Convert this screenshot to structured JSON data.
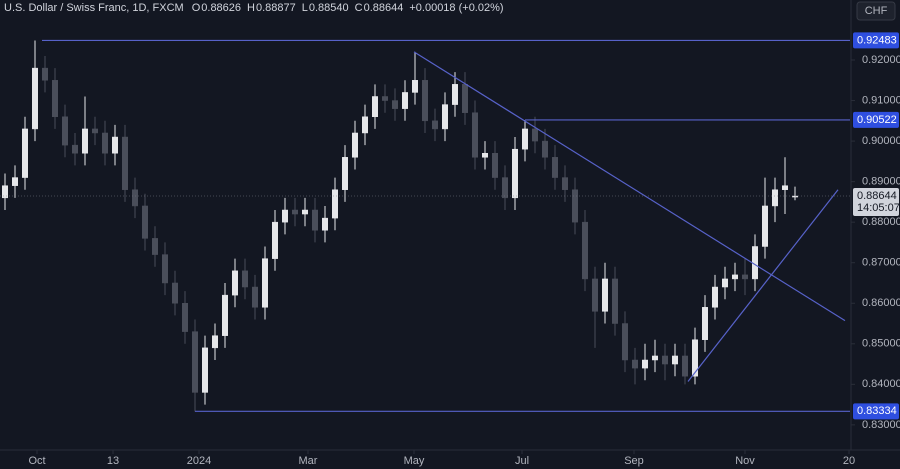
{
  "chart_data": {
    "type": "candlestick",
    "header": {
      "symbol": "U.S. Dollar / Swiss Franc, 1D, FXCM",
      "fields": [
        {
          "key": "O",
          "text": "0.88626"
        },
        {
          "key": "H",
          "text": "0.88877"
        },
        {
          "key": "L",
          "text": "0.88540"
        },
        {
          "key": "C",
          "text": "0.88644"
        }
      ],
      "change": "+0.00018 (+0.02%)"
    },
    "currency": "CHF",
    "up_color": "#e6e7ea",
    "down_color": "#4a4e5a",
    "line_color": "#5762c9",
    "level_color": "#2f4fe0",
    "xlim": [
      -0.5,
      84.5
    ],
    "xticks": [
      {
        "value": 3.2,
        "label": "Oct"
      },
      {
        "value": 10.8,
        "label": "13"
      },
      {
        "value": 19.4,
        "label": "2024"
      },
      {
        "value": 30.3,
        "label": "Mar"
      },
      {
        "value": 40.9,
        "label": "May"
      },
      {
        "value": 51.7,
        "label": "Jul"
      },
      {
        "value": 62.9,
        "label": "Sep"
      },
      {
        "value": 74,
        "label": "Nov"
      },
      {
        "value": 84.4,
        "label": "20"
      }
    ],
    "ylim": [
      0.8238,
      0.9348
    ],
    "yticks": [
      {
        "value": 0.83,
        "label": "0.83000"
      },
      {
        "value": 0.84,
        "label": "0.84000"
      },
      {
        "value": 0.85,
        "label": "0.85000"
      },
      {
        "value": 0.86,
        "label": "0.86000"
      },
      {
        "value": 0.87,
        "label": "0.87000"
      },
      {
        "value": 0.88,
        "label": "0.88000"
      },
      {
        "value": 0.89,
        "label": "0.89000"
      },
      {
        "value": 0.9,
        "label": "0.90000"
      },
      {
        "value": 0.91,
        "label": "0.91000"
      },
      {
        "value": 0.92,
        "label": "0.92000"
      }
    ],
    "open": [
      0.886,
      0.889,
      0.891,
      0.903,
      0.918,
      0.915,
      0.906,
      0.899,
      0.897,
      0.903,
      0.902,
      0.897,
      0.901,
      0.888,
      0.884,
      0.876,
      0.872,
      0.865,
      0.86,
      0.853,
      0.838,
      0.849,
      0.852,
      0.862,
      0.868,
      0.864,
      0.859,
      0.871,
      0.88,
      0.883,
      0.882,
      0.883,
      0.878,
      0.881,
      0.888,
      0.896,
      0.902,
      0.906,
      0.911,
      0.91,
      0.908,
      0.912,
      0.915,
      0.905,
      0.903,
      0.909,
      0.914,
      0.907,
      0.896,
      0.897,
      0.891,
      0.886,
      0.898,
      0.903,
      0.9,
      0.896,
      0.891,
      0.888,
      0.88,
      0.866,
      0.858,
      0.866,
      0.855,
      0.846,
      0.844,
      0.846,
      0.847,
      0.845,
      0.847,
      0.842,
      0.851,
      0.859,
      0.864,
      0.866,
      0.867,
      0.866,
      0.874,
      0.884,
      0.888,
      0.88626
    ],
    "high": [
      0.892,
      0.894,
      0.906,
      0.9248,
      0.921,
      0.918,
      0.909,
      0.902,
      0.911,
      0.906,
      0.905,
      0.904,
      0.904,
      0.891,
      0.887,
      0.879,
      0.875,
      0.868,
      0.863,
      0.856,
      0.852,
      0.855,
      0.865,
      0.871,
      0.871,
      0.867,
      0.874,
      0.883,
      0.886,
      0.886,
      0.886,
      0.886,
      0.884,
      0.891,
      0.899,
      0.905,
      0.909,
      0.914,
      0.914,
      0.913,
      0.915,
      0.922,
      0.918,
      0.908,
      0.912,
      0.917,
      0.917,
      0.91,
      0.9,
      0.9,
      0.894,
      0.901,
      0.9052,
      0.906,
      0.903,
      0.899,
      0.894,
      0.891,
      0.883,
      0.869,
      0.87,
      0.869,
      0.858,
      0.849,
      0.85,
      0.851,
      0.85,
      0.85,
      0.85,
      0.854,
      0.862,
      0.867,
      0.869,
      0.87,
      0.871,
      0.877,
      0.891,
      0.891,
      0.896,
      0.88877
    ],
    "low": [
      0.883,
      0.886,
      0.888,
      0.9,
      0.912,
      0.903,
      0.896,
      0.894,
      0.894,
      0.899,
      0.894,
      0.894,
      0.885,
      0.881,
      0.873,
      0.869,
      0.862,
      0.857,
      0.85,
      0.8333,
      0.835,
      0.846,
      0.849,
      0.859,
      0.861,
      0.856,
      0.856,
      0.868,
      0.877,
      0.879,
      0.879,
      0.875,
      0.875,
      0.878,
      0.885,
      0.893,
      0.899,
      0.903,
      0.907,
      0.905,
      0.905,
      0.909,
      0.902,
      0.9,
      0.9,
      0.906,
      0.904,
      0.893,
      0.893,
      0.888,
      0.883,
      0.883,
      0.895,
      0.897,
      0.893,
      0.888,
      0.885,
      0.877,
      0.863,
      0.849,
      0.855,
      0.852,
      0.843,
      0.84,
      0.841,
      0.843,
      0.841,
      0.842,
      0.84,
      0.84,
      0.848,
      0.856,
      0.861,
      0.863,
      0.862,
      0.863,
      0.871,
      0.88,
      0.882,
      0.8854
    ],
    "close": [
      0.889,
      0.891,
      0.903,
      0.918,
      0.915,
      0.906,
      0.899,
      0.897,
      0.903,
      0.902,
      0.897,
      0.901,
      0.888,
      0.884,
      0.876,
      0.872,
      0.865,
      0.86,
      0.853,
      0.838,
      0.849,
      0.852,
      0.862,
      0.868,
      0.864,
      0.859,
      0.871,
      0.88,
      0.883,
      0.882,
      0.883,
      0.878,
      0.881,
      0.888,
      0.896,
      0.902,
      0.906,
      0.911,
      0.91,
      0.908,
      0.912,
      0.915,
      0.905,
      0.903,
      0.909,
      0.914,
      0.907,
      0.896,
      0.897,
      0.891,
      0.886,
      0.898,
      0.903,
      0.9,
      0.896,
      0.891,
      0.888,
      0.88,
      0.866,
      0.858,
      0.866,
      0.855,
      0.846,
      0.844,
      0.846,
      0.847,
      0.845,
      0.847,
      0.842,
      0.851,
      0.859,
      0.864,
      0.866,
      0.867,
      0.866,
      0.874,
      0.884,
      0.888,
      0.889,
      0.88644
    ],
    "levels": [
      {
        "value": 0.92483,
        "label": "0.92483",
        "from": 3.7
      },
      {
        "value": 0.90522,
        "label": "0.90522",
        "from": 52
      },
      {
        "value": 0.83334,
        "label": "0.83334",
        "from": 19
      }
    ],
    "trendlines": [
      {
        "x": [
          40.9,
          84
        ],
        "y": [
          0.922,
          0.8557
        ]
      },
      {
        "x": [
          68.3,
          83.3
        ],
        "y": [
          0.8407,
          0.888
        ]
      }
    ],
    "last_price": {
      "value": 0.88644,
      "label": "0.88644",
      "countdown": "14:05:07"
    }
  }
}
